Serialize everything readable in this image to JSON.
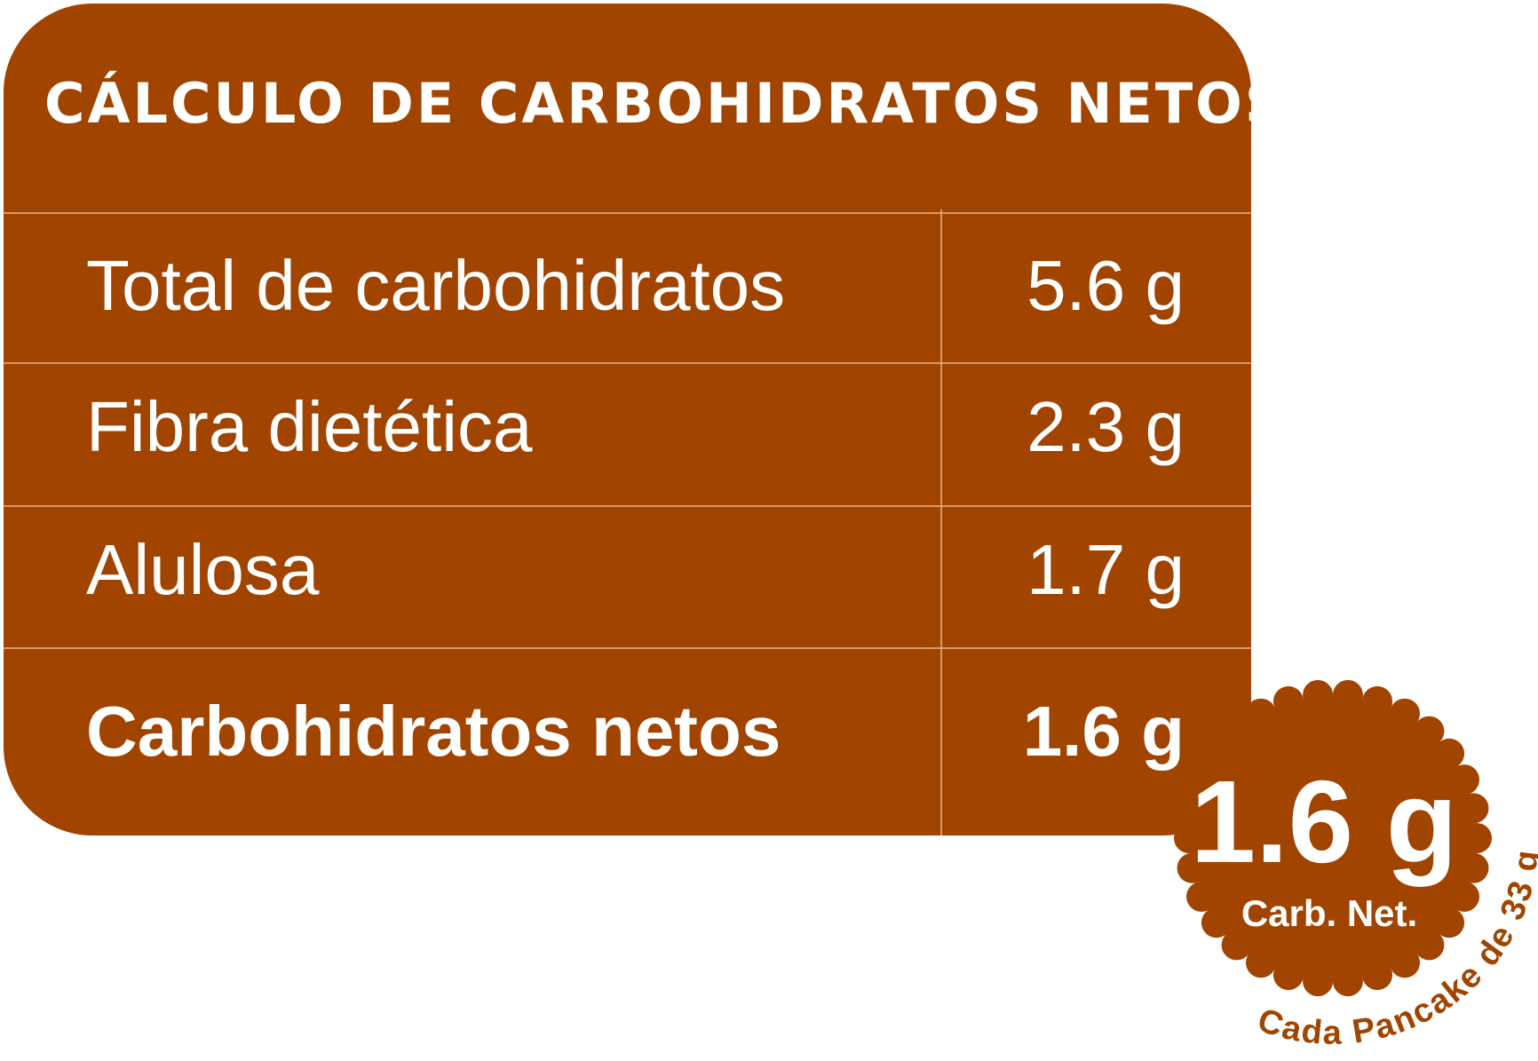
{
  "header": {
    "title": "CÁLCULO DE CARBOHIDRATOS NETOS"
  },
  "table": {
    "rows": [
      [
        "Total de carbohidratos",
        "5.6 g"
      ],
      [
        "Fibra dietética",
        "2.3 g"
      ],
      [
        "Alulosa",
        "1.7 g"
      ],
      [
        "Carbohidratos netos",
        "1.6 g"
      ]
    ]
  },
  "badge": {
    "value": "1.6 g",
    "label": "Carb. Net.",
    "caption": "Cada Pancake de 33 g"
  }
}
